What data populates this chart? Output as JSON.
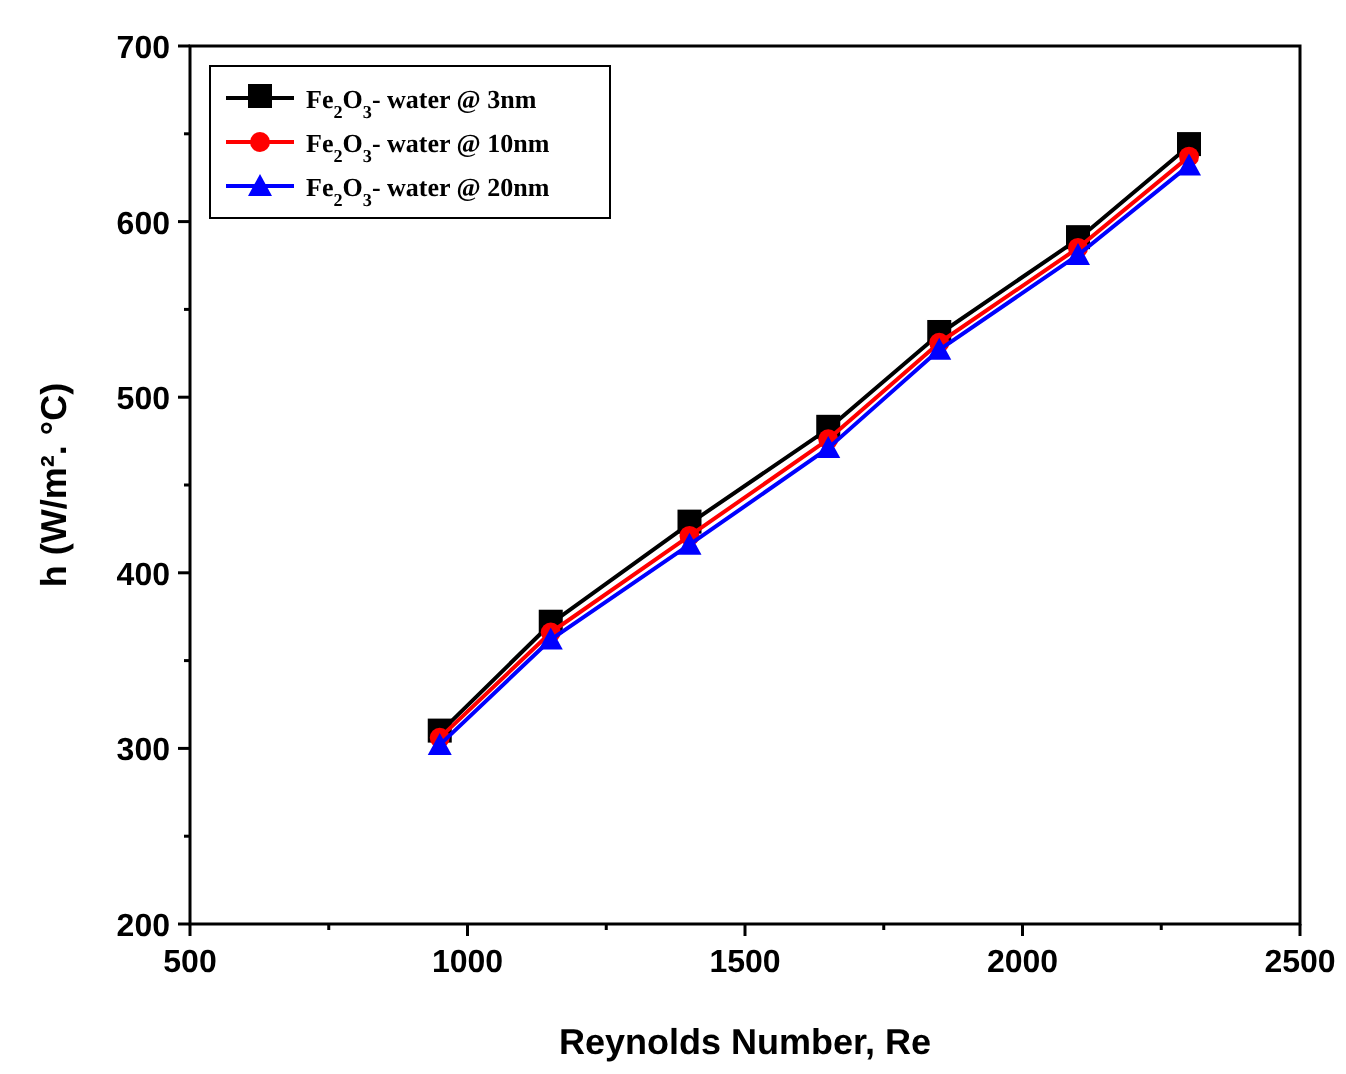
{
  "chart_data": {
    "type": "line",
    "xlabel": "Reynolds Number, Re",
    "ylabel": "h (W/m². °C)",
    "x": [
      950,
      1150,
      1400,
      1650,
      1850,
      2100,
      2300
    ],
    "series": [
      {
        "name": "Fe$_{2}$O$_{3}$- water @ 3nm",
        "color": "#000000",
        "marker": "square",
        "values": [
          309,
          371,
          428,
          482,
          536,
          590,
          643
        ]
      },
      {
        "name": "Fe$_{2}$O$_{3}$- water @ 10nm",
        "color": "#ff0000",
        "marker": "circle",
        "values": [
          306,
          366,
          421,
          476,
          531,
          585,
          637
        ]
      },
      {
        "name": "Fe$_{2}$O$_{3}$- water @ 20nm",
        "color": "#0000ff",
        "marker": "triangle",
        "values": [
          302,
          362,
          416,
          471,
          527,
          581,
          632
        ]
      }
    ],
    "xlim": [
      500,
      2500
    ],
    "xticks": [
      500,
      {
        "value": 750,
        "label": null
      },
      1000,
      {
        "value": 1250,
        "label": null
      },
      1500,
      {
        "value": 1750,
        "label": null
      },
      2000,
      {
        "value": 2250,
        "label": null
      },
      2500
    ],
    "ylim": [
      200,
      700
    ],
    "yticks": [
      200,
      {
        "value": 250,
        "label": null
      },
      300,
      {
        "value": 350,
        "label": null
      },
      400,
      {
        "value": 450,
        "label": null
      },
      500,
      {
        "value": 550,
        "label": null
      },
      600,
      {
        "value": 650,
        "label": null
      },
      700
    ],
    "grid": false,
    "legend": "top left",
    "line_style": "solid"
  }
}
